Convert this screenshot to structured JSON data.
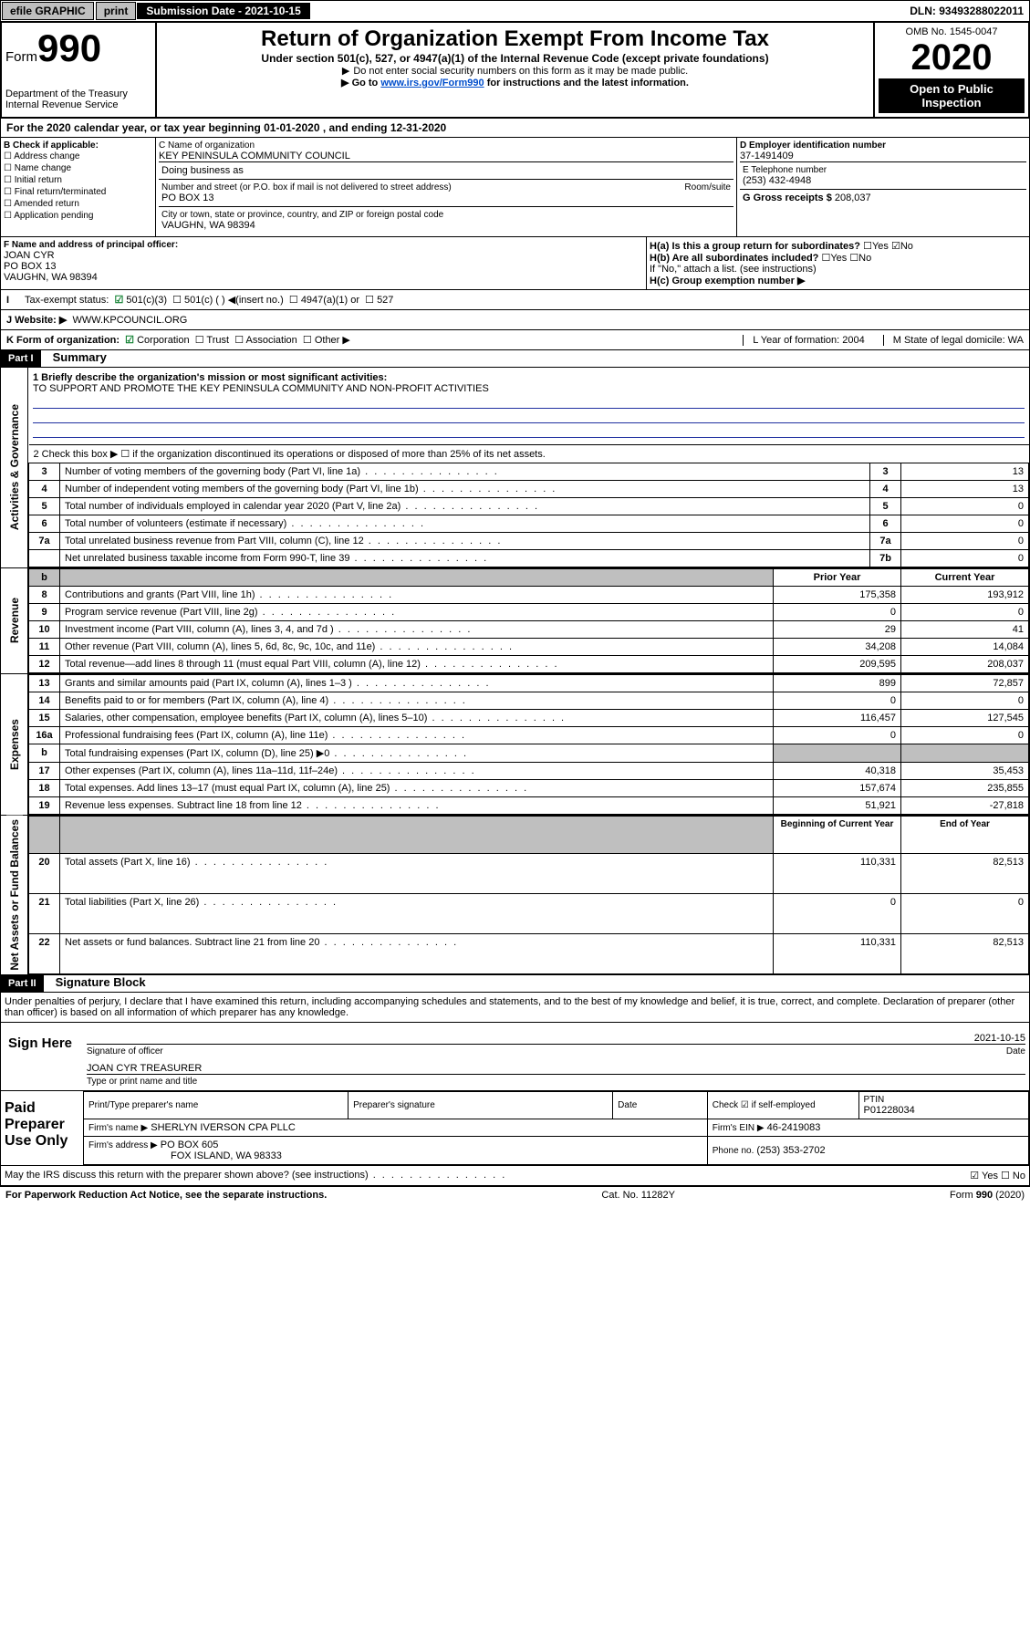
{
  "topbar": {
    "efile": "efile GRAPHIC",
    "print": "print",
    "submission": "Submission Date - 2021-10-15",
    "dln": "DLN: 93493288022011"
  },
  "header": {
    "form_label": "Form",
    "form_number": "990",
    "main_title": "Return of Organization Exempt From Income Tax",
    "subtitle": "Under section 501(c), 527, or 4947(a)(1) of the Internal Revenue Code (except private foundations)",
    "note1": "Do not enter social security numbers on this form as it may be made public.",
    "note2_pre": "Go to ",
    "note2_link": "www.irs.gov/Form990",
    "note2_post": " for instructions and the latest information.",
    "dept": "Department of the Treasury\nInternal Revenue Service",
    "omb": "OMB No. 1545-0047",
    "year": "2020",
    "open": "Open to Public Inspection"
  },
  "period": "For the 2020 calendar year, or tax year beginning 01-01-2020   , and ending 12-31-2020",
  "sectionB": {
    "label": "B Check if applicable:",
    "items": [
      "Address change",
      "Name change",
      "Initial return",
      "Final return/terminated",
      "Amended return",
      "Application pending"
    ]
  },
  "org": {
    "c_label": "C Name of organization",
    "name": "KEY PENINSULA COMMUNITY COUNCIL",
    "dba_label": "Doing business as",
    "addr_label": "Number and street (or P.O. box if mail is not delivered to street address)",
    "room_label": "Room/suite",
    "addr": "PO BOX 13",
    "city_label": "City or town, state or province, country, and ZIP or foreign postal code",
    "city": "VAUGHN, WA  98394"
  },
  "right": {
    "d_label": "D Employer identification number",
    "ein": "37-1491409",
    "e_label": "E Telephone number",
    "phone": "(253) 432-4948",
    "g_label": "G Gross receipts $",
    "gross": "208,037"
  },
  "F": {
    "label": "F  Name and address of principal officer:",
    "name": "JOAN CYR",
    "addr1": "PO BOX 13",
    "addr2": "VAUGHN, WA  98394",
    "Ha": "H(a)  Is this a group return for subordinates?",
    "Hb": "H(b)  Are all subordinates included?",
    "Hb_note": "If \"No,\" attach a list. (see instructions)",
    "Hc": "H(c)  Group exemption number ▶"
  },
  "status": {
    "label": "Tax-exempt status:",
    "opt1": "501(c)(3)",
    "opt2": "501(c) (   ) ◀(insert no.)",
    "opt3": "4947(a)(1) or",
    "opt4": "527"
  },
  "website": {
    "label": "J   Website: ▶",
    "value": "WWW.KPCOUNCIL.ORG"
  },
  "K": {
    "label": "K Form of organization:",
    "opts": [
      "Corporation",
      "Trust",
      "Association",
      "Other ▶"
    ],
    "L": "L Year of formation: 2004",
    "M": "M State of legal domicile: WA"
  },
  "partI": {
    "tag": "Part I",
    "title": "Summary"
  },
  "summary": {
    "line1_label": "1  Briefly describe the organization's mission or most significant activities:",
    "line1_text": "TO SUPPORT AND PROMOTE THE KEY PENINSULA COMMUNITY AND NON-PROFIT ACTIVITIES",
    "line2": "2  Check this box ▶ ☐  if the organization discontinued its operations or disposed of more than 25% of its net assets.",
    "governance_rows": [
      {
        "n": "3",
        "label": "Number of voting members of the governing body (Part VI, line 1a)",
        "box": "3",
        "val": "13"
      },
      {
        "n": "4",
        "label": "Number of independent voting members of the governing body (Part VI, line 1b)",
        "box": "4",
        "val": "13"
      },
      {
        "n": "5",
        "label": "Total number of individuals employed in calendar year 2020 (Part V, line 2a)",
        "box": "5",
        "val": "0"
      },
      {
        "n": "6",
        "label": "Total number of volunteers (estimate if necessary)",
        "box": "6",
        "val": "0"
      },
      {
        "n": "7a",
        "label": "Total unrelated business revenue from Part VIII, column (C), line 12",
        "box": "7a",
        "val": "0"
      },
      {
        "n": "",
        "label": "Net unrelated business taxable income from Form 990-T, line 39",
        "box": "7b",
        "val": "0"
      }
    ],
    "two_col_header": {
      "n": "b",
      "prior": "Prior Year",
      "current": "Current Year"
    },
    "revenue_rows": [
      {
        "n": "8",
        "label": "Contributions and grants (Part VIII, line 1h)",
        "prior": "175,358",
        "current": "193,912"
      },
      {
        "n": "9",
        "label": "Program service revenue (Part VIII, line 2g)",
        "prior": "0",
        "current": "0"
      },
      {
        "n": "10",
        "label": "Investment income (Part VIII, column (A), lines 3, 4, and 7d )",
        "prior": "29",
        "current": "41"
      },
      {
        "n": "11",
        "label": "Other revenue (Part VIII, column (A), lines 5, 6d, 8c, 9c, 10c, and 11e)",
        "prior": "34,208",
        "current": "14,084"
      },
      {
        "n": "12",
        "label": "Total revenue—add lines 8 through 11 (must equal Part VIII, column (A), line 12)",
        "prior": "209,595",
        "current": "208,037"
      }
    ],
    "expense_rows": [
      {
        "n": "13",
        "label": "Grants and similar amounts paid (Part IX, column (A), lines 1–3 )",
        "prior": "899",
        "current": "72,857"
      },
      {
        "n": "14",
        "label": "Benefits paid to or for members (Part IX, column (A), line 4)",
        "prior": "0",
        "current": "0"
      },
      {
        "n": "15",
        "label": "Salaries, other compensation, employee benefits (Part IX, column (A), lines 5–10)",
        "prior": "116,457",
        "current": "127,545"
      },
      {
        "n": "16a",
        "label": "Professional fundraising fees (Part IX, column (A), line 11e)",
        "prior": "0",
        "current": "0"
      },
      {
        "n": "b",
        "label": "Total fundraising expenses (Part IX, column (D), line 25) ▶0",
        "prior": "",
        "current": "",
        "shaded": true
      },
      {
        "n": "17",
        "label": "Other expenses (Part IX, column (A), lines 11a–11d, 11f–24e)",
        "prior": "40,318",
        "current": "35,453"
      },
      {
        "n": "18",
        "label": "Total expenses. Add lines 13–17 (must equal Part IX, column (A), line 25)",
        "prior": "157,674",
        "current": "235,855"
      },
      {
        "n": "19",
        "label": "Revenue less expenses. Subtract line 18 from line 12",
        "prior": "51,921",
        "current": "-27,818"
      }
    ],
    "net_header": {
      "prior": "Beginning of Current Year",
      "current": "End of Year"
    },
    "net_rows": [
      {
        "n": "20",
        "label": "Total assets (Part X, line 16)",
        "prior": "110,331",
        "current": "82,513"
      },
      {
        "n": "21",
        "label": "Total liabilities (Part X, line 26)",
        "prior": "0",
        "current": "0"
      },
      {
        "n": "22",
        "label": "Net assets or fund balances. Subtract line 21 from line 20",
        "prior": "110,331",
        "current": "82,513"
      }
    ]
  },
  "side_labels": {
    "gov": "Activities & Governance",
    "rev": "Revenue",
    "exp": "Expenses",
    "net": "Net Assets or Fund Balances"
  },
  "partII": {
    "tag": "Part II",
    "title": "Signature Block"
  },
  "sig": {
    "perjury": "Under penalties of perjury, I declare that I have examined this return, including accompanying schedules and statements, and to the best of my knowledge and belief, it is true, correct, and complete. Declaration of preparer (other than officer) is based on all information of which preparer has any knowledge.",
    "sign_here": "Sign Here",
    "sig_officer": "Signature of officer",
    "date_val": "2021-10-15",
    "date_label": "Date",
    "name_title": "JOAN CYR TREASURER",
    "type_name": "Type or print name and title",
    "paid": "Paid Preparer Use Only",
    "print_type": "Print/Type preparer's name",
    "prep_sig": "Preparer's signature",
    "date": "Date",
    "check_if": "Check ☑ if self-employed",
    "ptin_label": "PTIN",
    "ptin": "P01228034",
    "firm_name_label": "Firm's name   ▶",
    "firm_name": "SHERLYN IVERSON CPA PLLC",
    "firm_ein_label": "Firm's EIN ▶",
    "firm_ein": "46-2419083",
    "firm_addr_label": "Firm's address ▶",
    "firm_addr": "PO BOX 605",
    "firm_city": "FOX ISLAND, WA  98333",
    "phone_label": "Phone no.",
    "phone": "(253) 353-2702",
    "discuss": "May the IRS discuss this return with the preparer shown above? (see instructions)"
  },
  "footer": {
    "paperwork": "For Paperwork Reduction Act Notice, see the separate instructions.",
    "cat": "Cat. No. 11282Y",
    "form": "Form 990 (2020)"
  }
}
